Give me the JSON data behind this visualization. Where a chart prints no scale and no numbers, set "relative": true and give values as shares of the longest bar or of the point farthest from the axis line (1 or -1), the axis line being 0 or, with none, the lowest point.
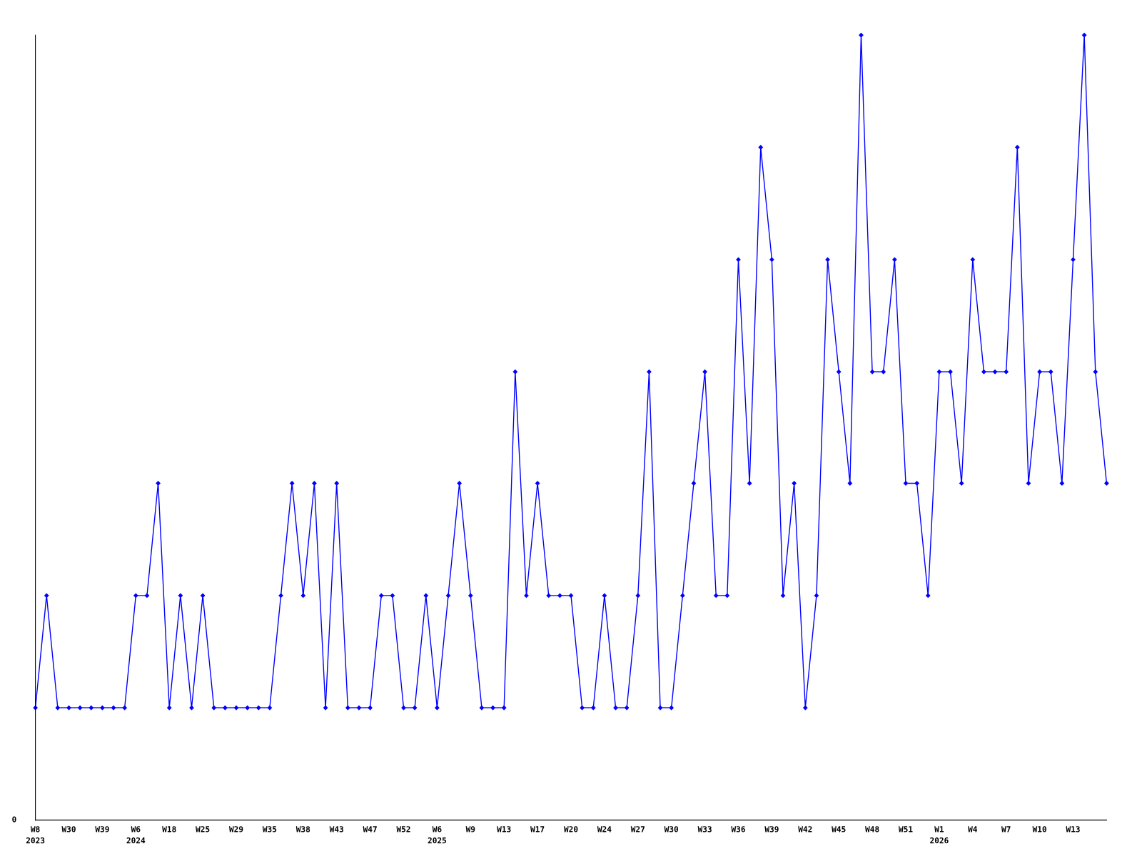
{
  "chart_data": {
    "type": "line",
    "relative": true,
    "marker": "diamond",
    "line_style": "solid",
    "grid": false,
    "legend": false,
    "annotations": [
      "0"
    ],
    "categories": [
      "W8\n2023",
      null,
      null,
      "W30",
      null,
      null,
      "W39",
      null,
      null,
      "W6\n2024",
      null,
      null,
      "W18",
      null,
      null,
      "W25",
      null,
      null,
      "W29",
      null,
      null,
      "W35",
      null,
      null,
      "W38",
      null,
      null,
      "W43",
      null,
      null,
      "W47",
      null,
      null,
      "W52",
      null,
      null,
      "W6\n2025",
      null,
      null,
      "W9",
      null,
      null,
      "W13",
      null,
      null,
      "W17",
      null,
      null,
      "W20",
      null,
      null,
      "W24",
      null,
      null,
      "W27",
      null,
      null,
      "W30",
      null,
      null,
      "W33",
      null,
      null,
      "W36",
      null,
      null,
      "W39",
      null,
      null,
      "W42",
      null,
      null,
      "W45",
      null,
      null,
      "W48",
      null,
      null,
      "W51",
      null,
      null,
      "W1\n2026",
      null,
      null,
      "W4",
      null,
      null,
      "W7",
      null,
      null,
      "W10",
      null,
      null,
      "W13",
      null,
      null,
      null
    ],
    "series": [
      {
        "color": "#0000ff",
        "values": [
          0.143,
          0.286,
          0.143,
          0.143,
          0.143,
          0.143,
          0.143,
          0.143,
          0.143,
          0.286,
          0.286,
          0.429,
          0.143,
          0.286,
          0.143,
          0.286,
          0.143,
          0.143,
          0.143,
          0.143,
          0.143,
          0.143,
          0.286,
          0.429,
          0.286,
          0.429,
          0.143,
          0.429,
          0.143,
          0.143,
          0.143,
          0.286,
          0.286,
          0.143,
          0.143,
          0.286,
          0.143,
          0.286,
          0.429,
          0.286,
          0.143,
          0.143,
          0.143,
          0.571,
          0.286,
          0.429,
          0.286,
          0.286,
          0.286,
          0.143,
          0.143,
          0.286,
          0.143,
          0.143,
          0.286,
          0.571,
          0.143,
          0.143,
          0.286,
          0.429,
          0.571,
          0.286,
          0.286,
          0.714,
          0.429,
          0.857,
          0.714,
          0.286,
          0.429,
          0.143,
          0.286,
          0.714,
          0.571,
          0.429,
          1,
          0.571,
          0.571,
          0.714,
          0.429,
          0.429,
          0.286,
          0.571,
          0.571,
          0.429,
          0.714,
          0.571,
          0.571,
          0.571,
          0.857,
          0.429,
          0.571,
          0.571,
          0.429,
          0.714,
          1,
          0.571,
          0.429
        ]
      }
    ]
  }
}
